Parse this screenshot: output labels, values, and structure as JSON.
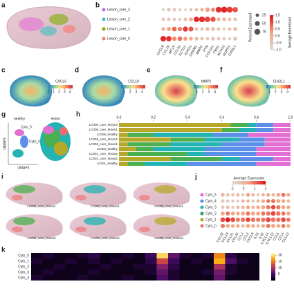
{
  "panel_labels": [
    "a",
    "b",
    "c",
    "d",
    "e",
    "f",
    "g",
    "h",
    "i",
    "j",
    "k"
  ],
  "b": {
    "genes": [
      "CXCL9",
      "CCL19",
      "MT1X",
      "CCL22",
      "ACTG1",
      "IGHG1",
      "GREM1",
      "MMP2",
      "PTN",
      "COL1A1",
      "FBN1",
      "MYH10",
      "NUPR1",
      "CHI3L1"
    ],
    "rows": [
      {
        "name": "Lesion_core_3",
        "color": "#b96fe0",
        "pct": [
          20,
          30,
          25,
          20,
          15,
          20,
          20,
          25,
          40,
          35,
          70,
          80,
          75,
          60
        ],
        "avg": [
          -0.8,
          -0.5,
          -0.6,
          -0.7,
          -0.8,
          -0.5,
          -0.3,
          0,
          0.3,
          0.5,
          1.3,
          1.4,
          1.2,
          1.0
        ]
      },
      {
        "name": "Lesion_core_2",
        "color": "#3fbfbf",
        "pct": [
          25,
          25,
          20,
          20,
          25,
          30,
          60,
          70,
          65,
          55,
          30,
          30,
          25,
          25
        ],
        "avg": [
          -0.5,
          -0.6,
          -0.4,
          -0.6,
          -0.3,
          0.2,
          1.4,
          1.3,
          1.1,
          1.0,
          -0.2,
          -0.1,
          -0.3,
          -0.4
        ]
      },
      {
        "name": "Lesion_core_1",
        "color": "#7cae00",
        "pct": [
          30,
          35,
          45,
          40,
          55,
          50,
          25,
          25,
          30,
          30,
          25,
          20,
          25,
          30
        ],
        "avg": [
          0,
          0.2,
          0.8,
          0.6,
          1.2,
          1.0,
          -0.4,
          -0.5,
          -0.2,
          -0.3,
          -0.5,
          -0.6,
          -0.4,
          -0.2
        ]
      },
      {
        "name": "Lesion_core_0",
        "color": "#f8766d",
        "pct": [
          65,
          60,
          40,
          45,
          35,
          30,
          30,
          25,
          25,
          30,
          25,
          25,
          20,
          30
        ],
        "avg": [
          1.4,
          1.3,
          0.5,
          0.7,
          0.3,
          0.2,
          -0.3,
          -0.5,
          -0.6,
          -0.5,
          -0.6,
          -0.7,
          -0.8,
          -0.3
        ]
      }
    ],
    "size_title": "Percent Expressed",
    "size_ticks": [
      25,
      50,
      75
    ],
    "color_title": "Average Expression",
    "color_lim": [
      -1,
      1.5
    ],
    "color_ticks": [
      {
        "value": -1,
        "label": "-1.0"
      },
      {
        "value": -0.5,
        "label": "-0.5"
      },
      {
        "value": 0,
        "label": "0.0"
      },
      {
        "value": 0.5,
        "label": "0.5"
      },
      {
        "value": 1,
        "label": "1.0"
      },
      {
        "value": 1.5,
        "label": "1.5"
      }
    ]
  },
  "maps": [
    {
      "title": "CXCL9",
      "lim": [
        0,
        4.5
      ],
      "ticks": [
        0,
        1,
        2,
        3,
        4
      ]
    },
    {
      "title": "CCL19",
      "lim": [
        0.5,
        4.5
      ],
      "ticks": [
        1,
        2,
        3,
        4
      ]
    },
    {
      "title": "MMP2",
      "lim": [
        0.5,
        4.5
      ],
      "ticks": [
        1,
        2,
        3,
        4
      ]
    },
    {
      "title": "CHI3L1",
      "lim": [
        0.5,
        4.5
      ],
      "ticks": [
        1,
        2,
        3,
        4
      ]
    }
  ],
  "g": {
    "titles": [
      "healthy",
      "lesion"
    ],
    "xlabel": "UMAP1",
    "ylabel": "UMAP2",
    "cluster_labels": [
      "Cyto_5",
      "Cyto_4"
    ]
  },
  "h": {
    "categories": [
      "LC006_core_lesion2",
      "LC006_core_lesion1",
      "LC006_healthy",
      "LC003_core_lesion2",
      "LC003_core_lesion1",
      "LC003_healthy",
      "LC001_core_lesion2",
      "LC001_core_lesion1",
      "LC001_healthy"
    ],
    "xlim": [
      0,
      1
    ],
    "xticks": [
      {
        "value": 0,
        "label": "0.0"
      },
      {
        "value": 0.2,
        "label": "0.2"
      },
      {
        "value": 0.4,
        "label": "0.4"
      },
      {
        "value": 0.6,
        "label": "0.6"
      },
      {
        "value": 0.8,
        "label": "0.8"
      },
      {
        "value": 1,
        "label": "1.0"
      }
    ],
    "series": [
      {
        "color": "#b8a82a",
        "values": [
          0.65,
          0.6,
          0.05,
          0.3,
          0.05,
          0.1,
          0.05,
          0.3,
          0.05
        ]
      },
      {
        "color": "#4caf50",
        "values": [
          0.1,
          0.1,
          0.15,
          0.2,
          0.25,
          0.1,
          0.35,
          0.3,
          0.1
        ]
      },
      {
        "color": "#23b3b3",
        "values": [
          0.05,
          0.1,
          0.35,
          0.2,
          0.3,
          0.3,
          0.1,
          0.1,
          0.25
        ]
      },
      {
        "color": "#5b8fe8",
        "values": [
          0.1,
          0.1,
          0.2,
          0.15,
          0.25,
          0.3,
          0.3,
          0.2,
          0.4
        ]
      },
      {
        "color": "#e36fd4",
        "values": [
          0.1,
          0.1,
          0.25,
          0.15,
          0.15,
          0.2,
          0.2,
          0.1,
          0.2
        ]
      }
    ]
  },
  "i": {
    "labels": [
      "LC001_core_lesion1",
      "LC003_core_lesion1",
      "LC006_core_lesion1",
      "LC001_core_lesion2",
      "LC003_core_lesion2",
      "LC006_core_lesion2"
    ]
  },
  "j": {
    "color_title": "Average Expression",
    "color_lim": [
      -1,
      2
    ],
    "color_ticks": [
      -1,
      0,
      1,
      2
    ],
    "genes": [
      "CCL18",
      "CCL19",
      "CCL21",
      "CCL22",
      "CCL2",
      "CCL3",
      "CXCL9",
      "IL16",
      "IL32",
      "CXCL14",
      "CXCL12",
      "CCL5",
      "CCL4",
      "CCL13"
    ],
    "rows": [
      {
        "name": "Cyto_5",
        "color": "#f062d6",
        "pct": [
          40,
          35,
          30,
          30,
          25,
          40,
          30,
          25,
          30,
          35,
          30,
          40,
          45,
          35
        ],
        "avg": [
          0,
          -0.5,
          -0.5,
          0,
          -0.5,
          0.5,
          0,
          -0.5,
          0,
          0.5,
          0,
          0.5,
          1,
          0.5
        ]
      },
      {
        "name": "Cyto_4",
        "color": "#5b8fe8",
        "pct": [
          35,
          30,
          25,
          25,
          30,
          30,
          25,
          30,
          35,
          40,
          45,
          40,
          35,
          30
        ],
        "avg": [
          -0.5,
          -0.5,
          -0.5,
          -0.5,
          0,
          0,
          -0.5,
          0,
          0.5,
          1,
          1,
          0.5,
          0.5,
          0
        ]
      },
      {
        "name": "Cyto_3",
        "color": "#23b3b3",
        "pct": [
          30,
          30,
          25,
          30,
          30,
          35,
          30,
          35,
          40,
          45,
          50,
          45,
          40,
          35
        ],
        "avg": [
          -0.5,
          0,
          -0.5,
          0,
          0,
          0.5,
          0,
          0.5,
          0.5,
          1,
          1.5,
          1,
          0.5,
          0.5
        ]
      },
      {
        "name": "Cyto_2",
        "color": "#2ca25f",
        "pct": [
          40,
          45,
          40,
          35,
          40,
          45,
          40,
          40,
          45,
          50,
          55,
          50,
          45,
          40
        ],
        "avg": [
          0.5,
          1,
          0.5,
          0.5,
          0.5,
          1,
          0.5,
          0.5,
          1,
          1,
          1.5,
          1,
          1,
          0.5
        ]
      },
      {
        "name": "Cyto_1",
        "color": "#b8a82a",
        "pct": [
          55,
          60,
          55,
          45,
          50,
          55,
          50,
          45,
          50,
          60,
          55,
          50,
          55,
          45
        ],
        "avg": [
          1.5,
          2,
          1.5,
          1,
          1,
          1.5,
          1,
          1,
          1,
          1.5,
          1,
          1,
          1.5,
          1
        ]
      },
      {
        "name": "Cyto_0",
        "color": "#f26b6b",
        "pct": [
          45,
          40,
          35,
          35,
          30,
          40,
          35,
          30,
          35,
          45,
          40,
          35,
          40,
          35
        ],
        "avg": [
          1,
          0.5,
          0.5,
          0.5,
          0,
          0.5,
          0.5,
          0,
          0.5,
          1,
          0.5,
          0.5,
          1,
          0.5
        ]
      }
    ]
  },
  "k": {
    "rows": [
      "Cyto_0",
      "Cyto_1",
      "Cyto_2",
      "Cyto_3",
      "Cyto_4"
    ],
    "lim": [
      0,
      22
    ],
    "ticks": [
      5,
      10,
      15,
      20
    ],
    "values": [
      [
        1,
        2,
        1,
        1,
        2,
        3,
        1,
        1,
        2,
        1,
        4,
        20,
        6,
        2,
        1,
        2,
        16,
        3,
        1,
        1
      ],
      [
        2,
        1,
        1,
        2,
        1,
        2,
        1,
        2,
        1,
        1,
        3,
        12,
        4,
        1,
        2,
        1,
        18,
        5,
        2,
        1
      ],
      [
        1,
        1,
        2,
        1,
        1,
        1,
        2,
        1,
        1,
        2,
        2,
        8,
        3,
        1,
        1,
        1,
        10,
        2,
        1,
        1
      ],
      [
        1,
        2,
        1,
        1,
        1,
        2,
        1,
        1,
        1,
        1,
        2,
        6,
        2,
        1,
        1,
        2,
        7,
        2,
        1,
        1
      ],
      [
        2,
        1,
        1,
        1,
        2,
        1,
        1,
        1,
        2,
        1,
        1,
        5,
        2,
        1,
        1,
        1,
        6,
        1,
        1,
        1
      ]
    ]
  }
}
